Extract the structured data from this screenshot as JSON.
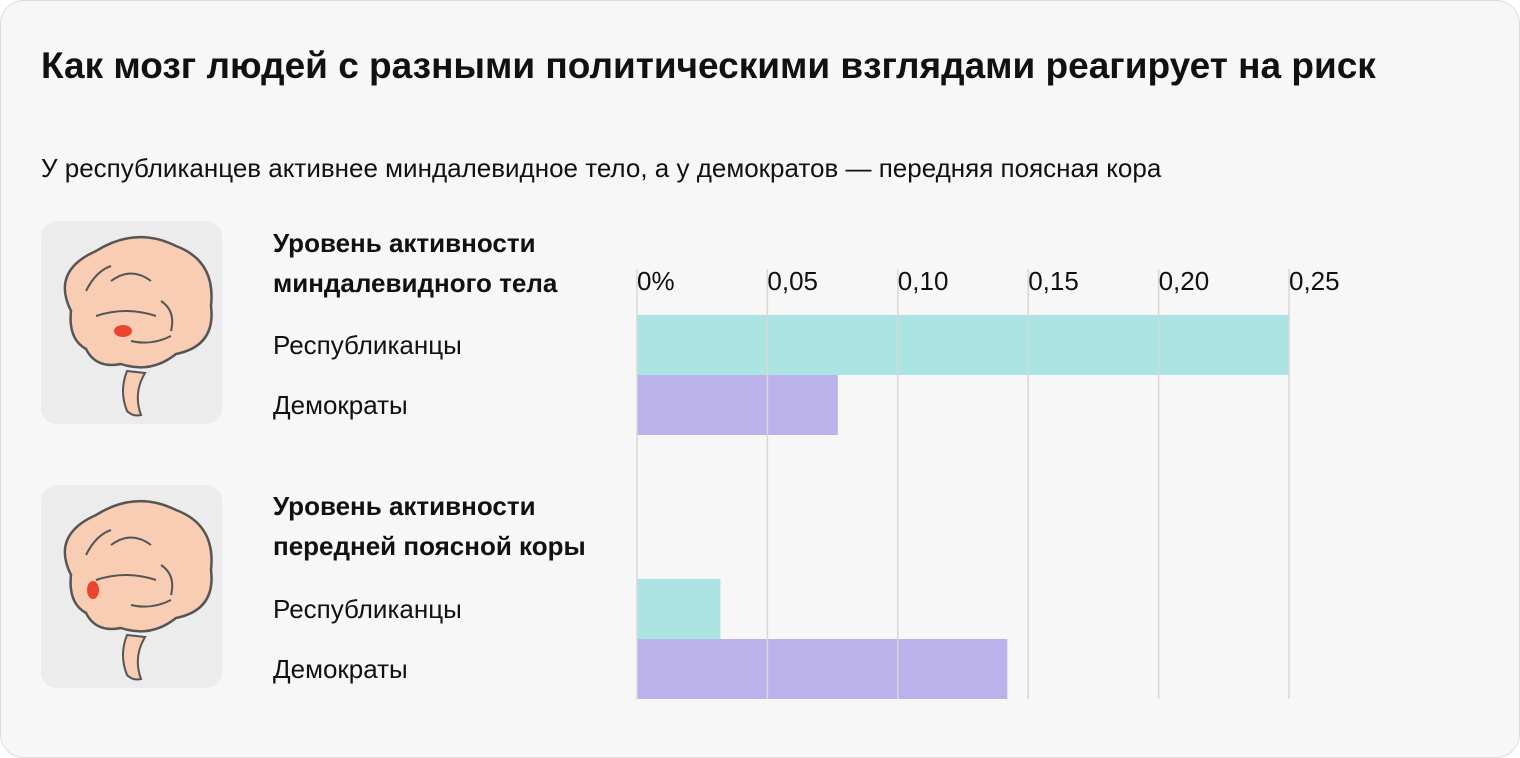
{
  "title": "Как мозг людей с разными политическими взглядами реагирует на риск",
  "subtitle": "У республиканцев активнее миндалевидное тело, а у демократов — передняя поясная кора",
  "chart_data": [
    {
      "type": "bar",
      "orientation": "horizontal",
      "title": "Уровень активности миндалевидного тела",
      "categories": [
        "Республиканцы",
        "Демократы"
      ],
      "values": [
        0.25,
        0.077
      ],
      "colors": [
        "#a6e3e0",
        "#b7aeeb"
      ],
      "xlim": [
        0,
        0.25
      ],
      "xticks": [
        {
          "value": 0,
          "label": "0%"
        },
        {
          "value": 0.05,
          "label": "0,05"
        },
        {
          "value": 0.1,
          "label": "0,10"
        },
        {
          "value": 0.15,
          "label": "0,15"
        },
        {
          "value": 0.2,
          "label": "0,20"
        },
        {
          "value": 0.25,
          "label": "0,25"
        }
      ],
      "grid": true
    },
    {
      "type": "bar",
      "orientation": "horizontal",
      "title": "Уровень активности передней поясной коры",
      "categories": [
        "Республиканцы",
        "Демократы"
      ],
      "values": [
        0.032,
        0.142
      ],
      "colors": [
        "#a6e3e0",
        "#b7aeeb"
      ],
      "xlim": [
        0,
        0.25
      ]
    }
  ]
}
